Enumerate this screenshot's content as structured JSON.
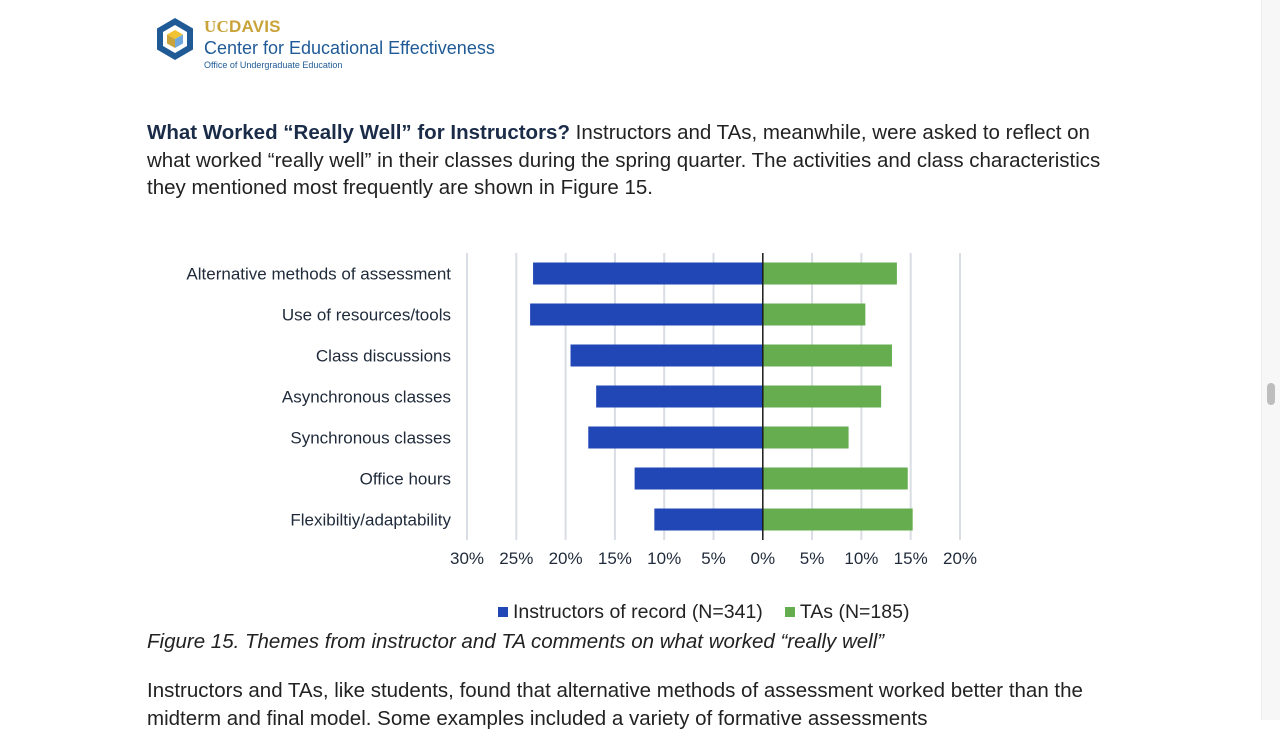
{
  "header": {
    "logo_uc": "UC",
    "logo_davis": "DAVIS",
    "center_name": "Center for Educational Effectiveness",
    "office": "Office of Undergraduate Education"
  },
  "intro": {
    "heading": "What Worked “Really Well” for Instructors?",
    "text": " Instructors and TAs, meanwhile, were asked to reflect on what worked “really well” in their classes during the spring quarter. The activities and class characteristics they mentioned most frequently are shown in Figure 15."
  },
  "chart_data": {
    "type": "bar",
    "orientation": "horizontal-diverging",
    "categories": [
      "Alternative methods of assessment",
      "Use of resources/tools",
      "Class discussions",
      "Asynchronous classes",
      "Synchronous classes",
      "Office hours",
      "Flexibiltiy/adaptability"
    ],
    "series": [
      {
        "name": "Instructors of record (N=341)",
        "direction": "left",
        "color": "#2146b5",
        "values": [
          23.3,
          23.6,
          19.5,
          16.9,
          17.7,
          13.0,
          11.0
        ]
      },
      {
        "name": "TAs (N=185)",
        "direction": "right",
        "color": "#65ad4f",
        "values": [
          13.6,
          10.4,
          13.1,
          12.0,
          8.7,
          14.7,
          15.2
        ]
      }
    ],
    "xlim": [
      -30,
      20
    ],
    "xticks": [
      -30,
      -25,
      -20,
      -15,
      -10,
      -5,
      0,
      5,
      10,
      15,
      20
    ],
    "xtick_labels": [
      "30%",
      "25%",
      "20%",
      "15%",
      "10%",
      "5%",
      "0%",
      "5%",
      "10%",
      "15%",
      "20%"
    ],
    "grid": true,
    "legend": "bottom"
  },
  "caption": "Figure 15. Themes from instructor and TA comments on what worked “really well”",
  "body": {
    "text": "Instructors and TAs, like students, found that alternative methods of assessment worked better than the midterm and final model. Some examples included a variety of formative assessments"
  }
}
